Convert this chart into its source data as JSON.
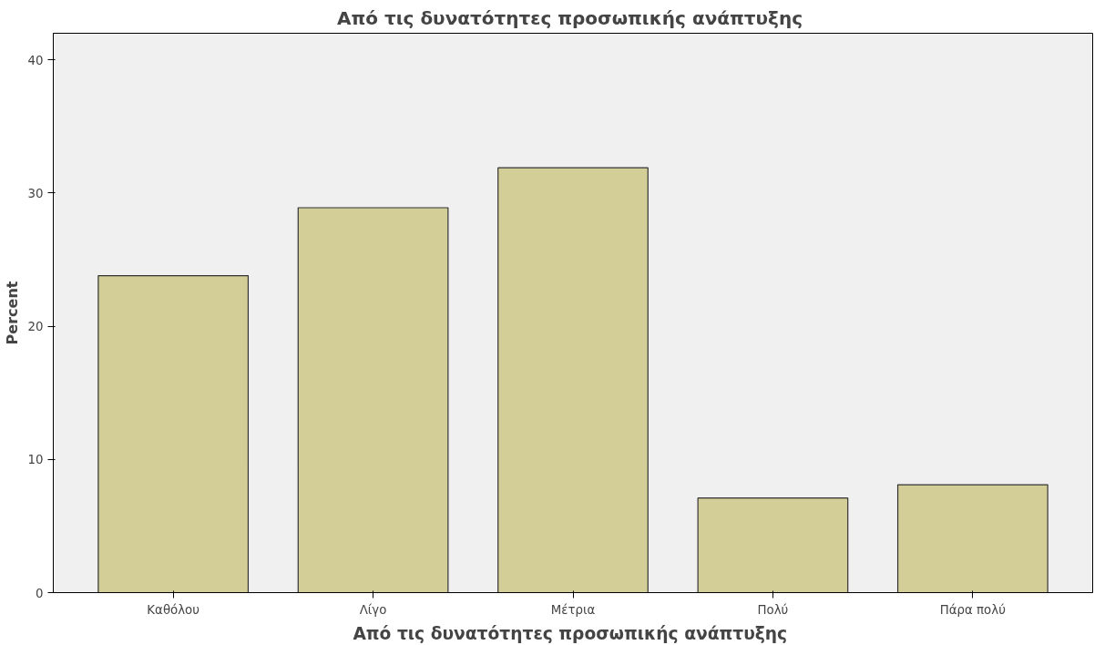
{
  "chart_data": {
    "type": "bar",
    "title": "Από τις δυνατότητες προσωπικής  ανάπτυξης",
    "xlabel": "Από τις δυνατότητες προσωπικής  ανάπτυξης",
    "ylabel": "Percent",
    "categories": [
      "Καθόλου",
      "Λίγο",
      "Μέτρια",
      "Πολύ",
      "Πάρα πολύ"
    ],
    "values": [
      23.8,
      28.9,
      31.9,
      7.1,
      8.1
    ],
    "color": "#d3ce97",
    "ylim": [
      0,
      42
    ],
    "yticks": [
      0,
      10,
      20,
      30,
      40
    ],
    "grid": false
  }
}
